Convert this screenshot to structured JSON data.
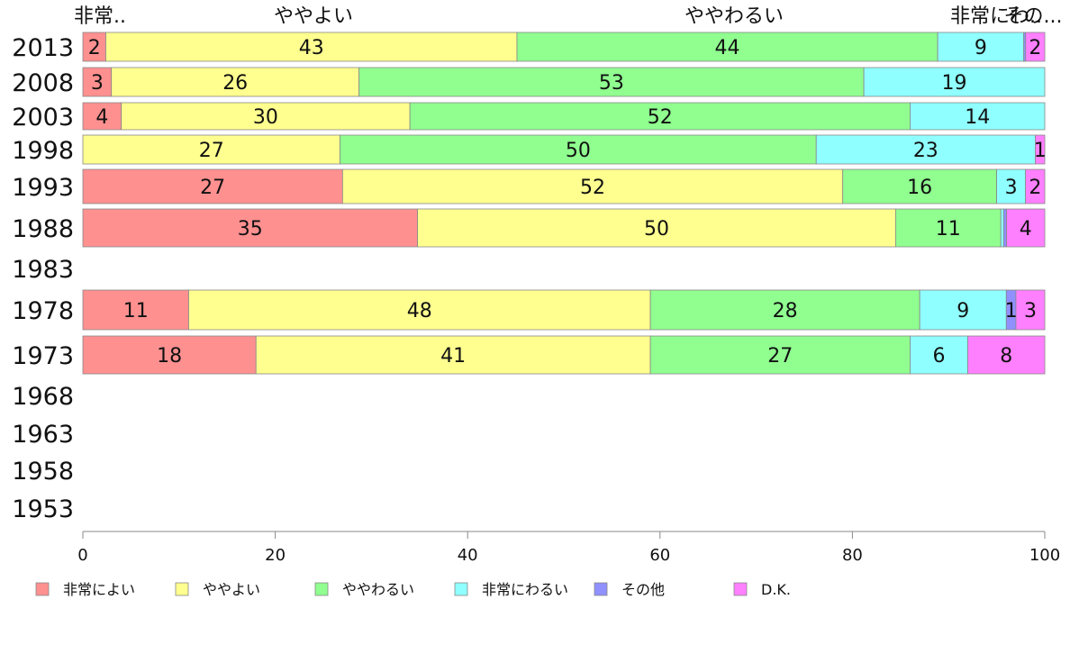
{
  "chart_data": {
    "type": "bar",
    "orientation": "horizontal",
    "stacked": true,
    "xlim": [
      0,
      100
    ],
    "x_ticks": [
      0,
      20,
      40,
      60,
      80,
      100
    ],
    "categories": [
      "2013",
      "2008",
      "2003",
      "1998",
      "1993",
      "1988",
      "1983",
      "1978",
      "1973",
      "1968",
      "1963",
      "1958",
      "1953"
    ],
    "top_labels": [
      "非常..",
      "ややよい",
      "ややわるい",
      "非常にわ..",
      "その..."
    ],
    "series": [
      {
        "name": "非常によい",
        "color": "#ff9090",
        "values": [
          2.4,
          3,
          4,
          0,
          27,
          35,
          null,
          11,
          18,
          null,
          null,
          null,
          null
        ]
      },
      {
        "name": "ややよい",
        "color": "#ffff90",
        "values": [
          43,
          26,
          30,
          27,
          52,
          50,
          null,
          48,
          41,
          null,
          null,
          null,
          null
        ]
      },
      {
        "name": "ややわるい",
        "color": "#90ff90",
        "values": [
          44,
          53,
          52,
          50,
          16,
          11,
          null,
          28,
          27,
          null,
          null,
          null,
          null
        ]
      },
      {
        "name": "非常にわるい",
        "color": "#90ffff",
        "values": [
          9,
          19,
          14,
          23,
          3,
          0.3,
          null,
          9,
          6,
          null,
          null,
          null,
          null
        ]
      },
      {
        "name": "その他",
        "color": "#9090ff",
        "values": [
          0.2,
          0,
          0,
          0,
          0,
          0.3,
          null,
          1,
          0,
          null,
          null,
          null,
          null
        ]
      },
      {
        "name": "D.K.",
        "color": "#ff80ff",
        "values": [
          2,
          0,
          0,
          1,
          2,
          4,
          null,
          3,
          8,
          null,
          null,
          null,
          null
        ]
      }
    ],
    "labels": [
      [
        "2",
        "43",
        "44",
        "9",
        "",
        "2"
      ],
      [
        "3",
        "26",
        "53",
        "19",
        "",
        ""
      ],
      [
        "4",
        "30",
        "52",
        "14",
        "",
        ""
      ],
      [
        "",
        "27",
        "50",
        "23",
        "",
        "1"
      ],
      [
        "27",
        "52",
        "16",
        "3",
        "",
        "2"
      ],
      [
        "35",
        "50",
        "11",
        "",
        "",
        "4"
      ],
      [
        "",
        "",
        "",
        "",
        "",
        ""
      ],
      [
        "11",
        "48",
        "28",
        "9",
        "1",
        "3"
      ],
      [
        "18",
        "41",
        "27",
        "6",
        "",
        "8"
      ],
      [
        "",
        "",
        "",
        "",
        "",
        ""
      ],
      [
        "",
        "",
        "",
        "",
        "",
        ""
      ],
      [
        "",
        "",
        "",
        "",
        "",
        ""
      ],
      [
        "",
        "",
        "",
        "",
        "",
        ""
      ]
    ],
    "legend_position": "bottom",
    "grid": false
  }
}
